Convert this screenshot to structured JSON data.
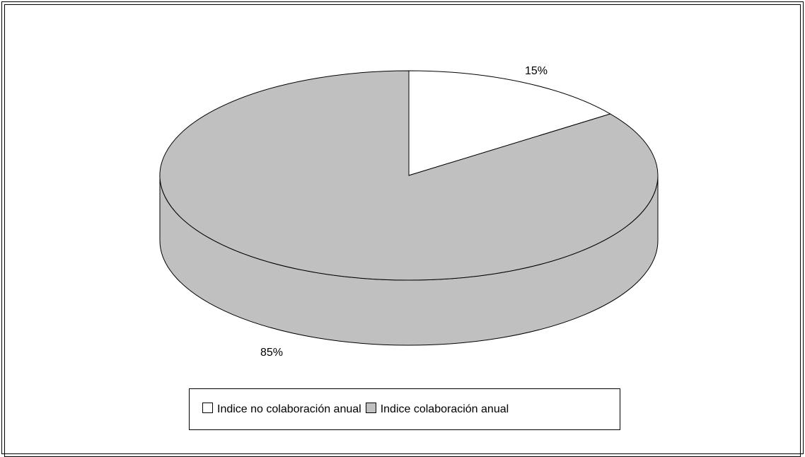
{
  "chart_data": {
    "type": "pie",
    "title": "",
    "categories": [
      "Indice no colaboración anual",
      "Indice colaboración anual"
    ],
    "values": [
      15,
      85
    ],
    "data_labels": [
      "15%",
      "85%"
    ],
    "colors": [
      "#ffffff",
      "#c0c0c0"
    ],
    "legend_position": "bottom",
    "three_d": true
  },
  "legend": {
    "items": [
      {
        "label": "Indice no colaboración anual",
        "color": "#ffffff"
      },
      {
        "label": "Indice colaboración anual",
        "color": "#c0c0c0"
      }
    ]
  }
}
